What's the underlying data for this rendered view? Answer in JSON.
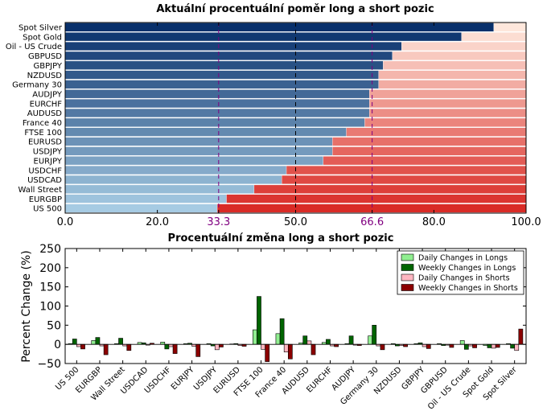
{
  "chart_data": [
    {
      "type": "bar",
      "orientation": "horizontal",
      "stacked": true,
      "title": "Aktuální procentuální poměr long a short pozic",
      "categories": [
        "Spot Silver",
        "Spot Gold",
        "Oil - US Crude",
        "GBPUSD",
        "GBPJPY",
        "NZDUSD",
        "Germany 30",
        "AUDJPY",
        "EURCHF",
        "AUDUSD",
        "France 40",
        "FTSE 100",
        "EURUSD",
        "USDJPY",
        "EURJPY",
        "USDCHF",
        "USDCAD",
        "Wall Street",
        "EURGBP",
        "US 500"
      ],
      "series": [
        {
          "values": [
            93,
            86,
            73,
            71,
            69,
            68,
            68,
            66,
            66,
            66,
            65,
            61,
            58,
            58,
            56,
            48,
            47,
            41,
            35,
            33
          ]
        },
        {
          "values": [
            7,
            14,
            27,
            29,
            31,
            32,
            32,
            34,
            34,
            34,
            35,
            39,
            42,
            42,
            44,
            52,
            53,
            59,
            65,
            67
          ]
        }
      ],
      "xlim": [
        0,
        100
      ],
      "xticks": [
        "0.0",
        "20.0",
        "33.3",
        "50.0",
        "66.6",
        "80.0",
        "100.0"
      ],
      "xtick_values": [
        0,
        20,
        33.3,
        50,
        66.6,
        80,
        100
      ],
      "highlight_ticks": [
        "33.3",
        "66.6"
      ],
      "reference_lines": [
        33.3,
        50,
        66.6
      ]
    },
    {
      "type": "bar",
      "title": "Procentuální změna long a short pozic",
      "ylabel": "Percent Change (%)",
      "ylim": [
        -50,
        250
      ],
      "yticks": [
        "250",
        "200",
        "150",
        "100",
        "50",
        "0",
        "−50"
      ],
      "ytick_values": [
        250,
        200,
        150,
        100,
        50,
        0,
        -50
      ],
      "legend_position": "top-right",
      "categories": [
        "US 500",
        "EURGBP",
        "Wall Street",
        "USDCAD",
        "USDCHF",
        "EURJPY",
        "USDJPY",
        "EURUSD",
        "FTSE 100",
        "France 40",
        "AUDUSD",
        "EURCHF",
        "AUDJPY",
        "Germany 30",
        "NZDUSD",
        "GBPJPY",
        "GBPUSD",
        "Oil - US Crude",
        "Spot Gold",
        "Spot Silver"
      ],
      "series": [
        {
          "name": "Daily Changes in Longs",
          "color": "#90ee90",
          "values": [
            2,
            10,
            2,
            5,
            6,
            2,
            2,
            1,
            38,
            28,
            4,
            5,
            2,
            22,
            2,
            2,
            2,
            10,
            -3,
            2
          ]
        },
        {
          "name": "Weekly Changes in Longs",
          "color": "#006400",
          "values": [
            14,
            18,
            16,
            4,
            -12,
            3,
            -4,
            2,
            125,
            67,
            22,
            13,
            22,
            50,
            -4,
            4,
            -3,
            -13,
            -9,
            -10
          ]
        },
        {
          "name": "Daily Changes in Shorts",
          "color": "#ffb6c1",
          "values": [
            -6,
            -4,
            -4,
            -2,
            -6,
            -5,
            -14,
            -3,
            -13,
            -20,
            9,
            -4,
            -2,
            -4,
            -3,
            -6,
            -2,
            -4,
            -10,
            -16
          ]
        },
        {
          "name": "Weekly Changes in Shorts",
          "color": "#8b0000",
          "values": [
            -12,
            -27,
            -16,
            3,
            -24,
            -32,
            -7,
            -5,
            -45,
            -38,
            -27,
            -6,
            -3,
            -14,
            -6,
            -11,
            -8,
            -9,
            -8,
            40
          ]
        }
      ]
    }
  ],
  "colors": {
    "long_dark": "#08306b",
    "long_light": "#a6cbe3",
    "short_light": "#fee7dc",
    "short_dark": "#d92b26",
    "highlight": "#800080"
  }
}
